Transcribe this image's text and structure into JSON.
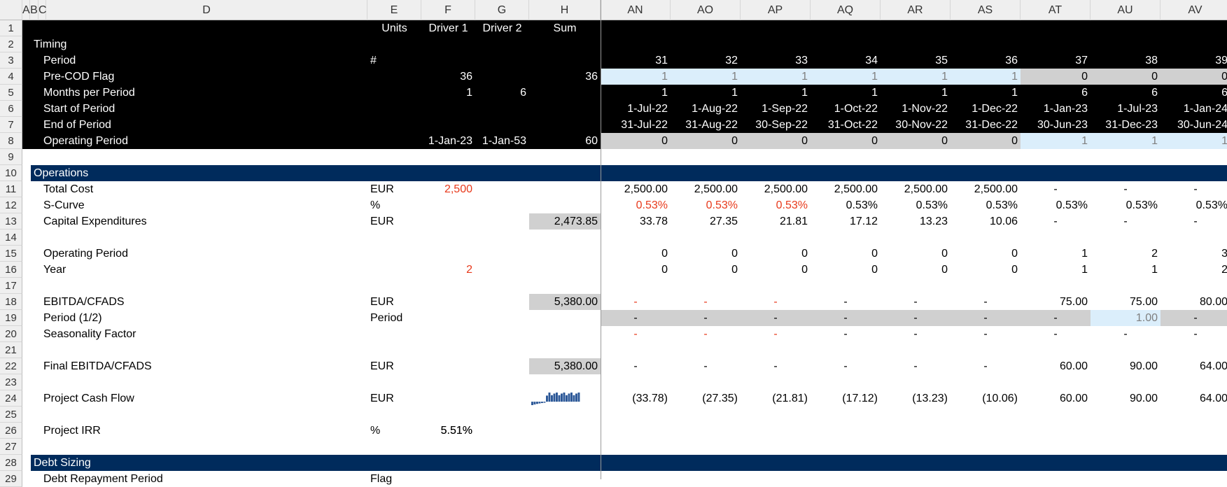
{
  "column_headers": [
    "A",
    "B",
    "C",
    "D",
    "E",
    "F",
    "G",
    "H",
    "AN",
    "AO",
    "AP",
    "AQ",
    "AR",
    "AS",
    "AT",
    "AU",
    "AV"
  ],
  "row_numbers": [
    "1",
    "2",
    "3",
    "4",
    "5",
    "6",
    "7",
    "8",
    "9",
    "10",
    "11",
    "12",
    "13",
    "14",
    "15",
    "16",
    "17",
    "18",
    "19",
    "20",
    "21",
    "22",
    "23",
    "24",
    "25",
    "26",
    "27",
    "28",
    "29"
  ],
  "header_row": {
    "units": "Units",
    "driver1": "Driver 1",
    "driver2": "Driver 2",
    "sum": "Sum"
  },
  "timing": {
    "section_label": "Timing",
    "rows": [
      {
        "label": "Period",
        "units": "#",
        "d1": "",
        "d2": "",
        "sum": "",
        "vals": [
          "31",
          "32",
          "33",
          "34",
          "35",
          "36",
          "37",
          "38",
          "39"
        ]
      },
      {
        "label": "Pre-COD Flag",
        "units": "",
        "d1": "36",
        "d2": "",
        "sum": "36",
        "vals": [
          "1",
          "1",
          "1",
          "1",
          "1",
          "1",
          "0",
          "0",
          "0"
        ]
      },
      {
        "label": "Months per Period",
        "units": "",
        "d1": "1",
        "d2": "6",
        "sum": "",
        "vals": [
          "1",
          "1",
          "1",
          "1",
          "1",
          "1",
          "6",
          "6",
          "6"
        ]
      },
      {
        "label": "Start of Period",
        "units": "",
        "d1": "",
        "d2": "",
        "sum": "",
        "vals": [
          "1-Jul-22",
          "1-Aug-22",
          "1-Sep-22",
          "1-Oct-22",
          "1-Nov-22",
          "1-Dec-22",
          "1-Jan-23",
          "1-Jul-23",
          "1-Jan-24"
        ]
      },
      {
        "label": "End of Period",
        "units": "",
        "d1": "",
        "d2": "",
        "sum": "",
        "vals": [
          "31-Jul-22",
          "31-Aug-22",
          "30-Sep-22",
          "31-Oct-22",
          "30-Nov-22",
          "31-Dec-22",
          "30-Jun-23",
          "31-Dec-23",
          "30-Jun-24"
        ]
      },
      {
        "label": "Operating Period",
        "units": "",
        "d1": "1-Jan-23",
        "d2": "1-Jan-53",
        "sum": "60",
        "vals": [
          "0",
          "0",
          "0",
          "0",
          "0",
          "0",
          "1",
          "1",
          "1"
        ]
      }
    ]
  },
  "operations": {
    "section_label": "Operations",
    "rows": [
      {
        "label": "Total Cost",
        "units": "EUR",
        "d1": "2,500",
        "d2": "",
        "sum": "",
        "vals": [
          "2,500.00",
          "2,500.00",
          "2,500.00",
          "2,500.00",
          "2,500.00",
          "2,500.00",
          "-",
          "-",
          "-"
        ]
      },
      {
        "label": "S-Curve",
        "units": "%",
        "d1": "",
        "d2": "",
        "sum": "",
        "vals": [
          "0.53%",
          "0.53%",
          "0.53%",
          "0.53%",
          "0.53%",
          "0.53%",
          "0.53%",
          "0.53%",
          "0.53%"
        ]
      },
      {
        "label": "Capital Expenditures",
        "units": "EUR",
        "d1": "",
        "d2": "",
        "sum": "2,473.85",
        "vals": [
          "33.78",
          "27.35",
          "21.81",
          "17.12",
          "13.23",
          "10.06",
          "-",
          "-",
          "-"
        ]
      },
      {
        "label": "Operating Period",
        "units": "",
        "d1": "",
        "d2": "",
        "sum": "",
        "vals": [
          "0",
          "0",
          "0",
          "0",
          "0",
          "0",
          "1",
          "2",
          "3"
        ]
      },
      {
        "label": "Year",
        "units": "",
        "d1": "2",
        "d2": "",
        "sum": "",
        "vals": [
          "0",
          "0",
          "0",
          "0",
          "0",
          "0",
          "1",
          "1",
          "2"
        ]
      },
      {
        "label": "EBITDA/CFADS",
        "units": "EUR",
        "d1": "",
        "d2": "",
        "sum": "5,380.00",
        "vals": [
          "-",
          "-",
          "-",
          "-",
          "-",
          "-",
          "75.00",
          "75.00",
          "80.00"
        ]
      },
      {
        "label": "Period (1/2)",
        "units": "Period",
        "d1": "",
        "d2": "",
        "sum": "",
        "vals": [
          "-",
          "-",
          "-",
          "-",
          "-",
          "-",
          "-",
          "1.00",
          "-"
        ]
      },
      {
        "label": "Seasonality Factor",
        "units": "",
        "d1": "",
        "d2": "",
        "sum": "",
        "vals": [
          "-",
          "-",
          "-",
          "-",
          "-",
          "-",
          "-",
          "-",
          "-"
        ]
      },
      {
        "label": "Final EBITDA/CFADS",
        "units": "EUR",
        "d1": "",
        "d2": "",
        "sum": "5,380.00",
        "vals": [
          "-",
          "-",
          "-",
          "-",
          "-",
          "-",
          "60.00",
          "90.00",
          "64.00"
        ]
      },
      {
        "label": "Project Cash Flow",
        "units": "EUR",
        "d1": "",
        "d2": "",
        "sum": "",
        "vals": [
          "(33.78)",
          "(27.35)",
          "(21.81)",
          "(17.12)",
          "(13.23)",
          "(10.06)",
          "60.00",
          "90.00",
          "64.00"
        ]
      },
      {
        "label": "Project IRR",
        "units": "%",
        "d1": "5.51%",
        "d2": "",
        "sum": "",
        "vals": [
          "",
          "",
          "",
          "",
          "",
          "",
          "",
          "",
          ""
        ]
      }
    ]
  },
  "debt": {
    "section_label": "Debt Sizing",
    "first_row": {
      "label": "Debt Repayment Period",
      "units": "Flag"
    }
  },
  "colors": {
    "black_header": "#000000",
    "section_navy": "#002b5c",
    "input_red": "#e8391b",
    "light_gray": "#d0d0d0",
    "light_blue": "#dbeefb",
    "sparkline": "#2b5797"
  },
  "sparkline": {
    "series": [
      -33.78,
      -27.35,
      -21.81,
      -17.12,
      -13.23,
      -10.06,
      60,
      90,
      64,
      80,
      90,
      64,
      80,
      90,
      64,
      80,
      90,
      64,
      80,
      90
    ]
  }
}
